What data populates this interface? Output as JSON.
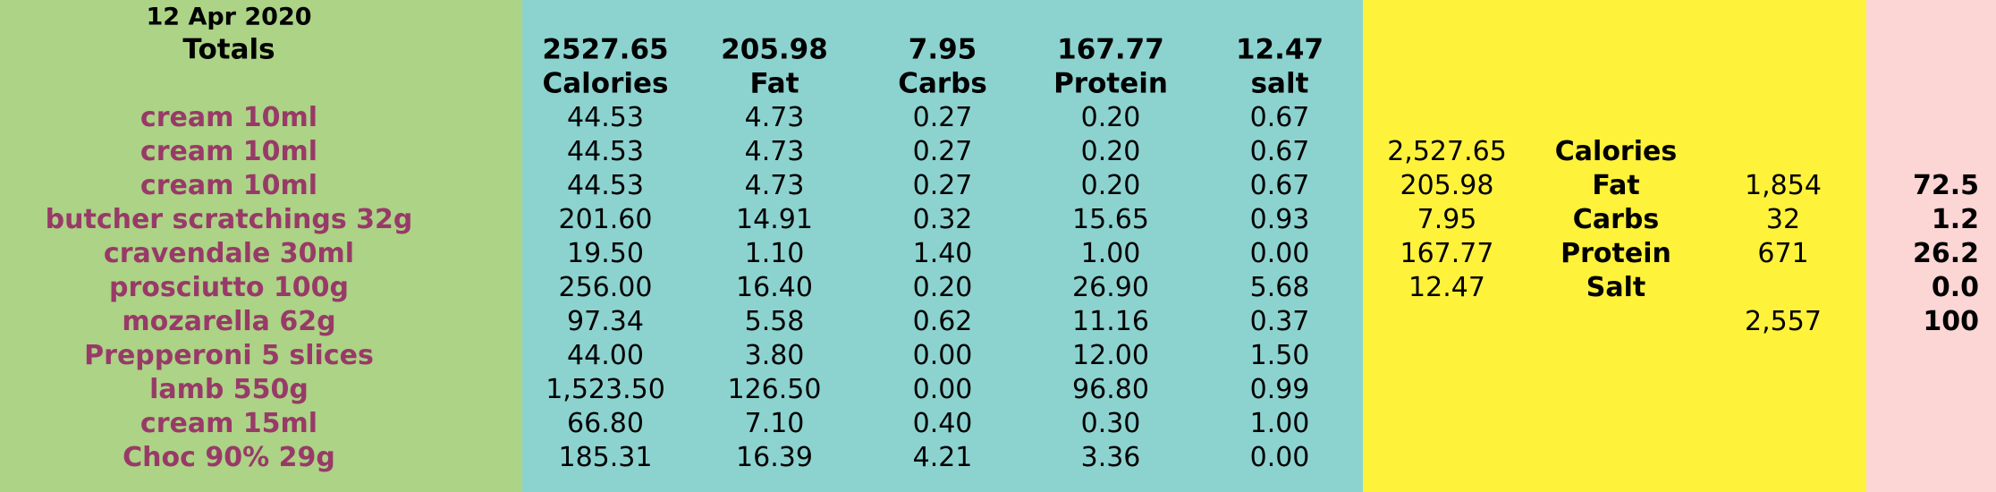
{
  "date": "12 Apr 2020",
  "totals_label": "Totals",
  "columns": [
    {
      "total": "2527.65",
      "label": "Calories"
    },
    {
      "total": "205.98",
      "label": "Fat"
    },
    {
      "total": "7.95",
      "label": "Carbs"
    },
    {
      "total": "167.77",
      "label": "Protein"
    },
    {
      "total": "12.47",
      "label": "salt"
    }
  ],
  "rows": [
    {
      "food": "cream 10ml",
      "values": [
        "44.53",
        "4.73",
        "0.27",
        "0.20",
        "0.67"
      ]
    },
    {
      "food": "cream 10ml",
      "values": [
        "44.53",
        "4.73",
        "0.27",
        "0.20",
        "0.67"
      ]
    },
    {
      "food": "cream 10ml",
      "values": [
        "44.53",
        "4.73",
        "0.27",
        "0.20",
        "0.67"
      ]
    },
    {
      "food": "butcher scratchings 32g",
      "values": [
        "201.60",
        "14.91",
        "0.32",
        "15.65",
        "0.93"
      ]
    },
    {
      "food": "cravendale 30ml",
      "values": [
        "19.50",
        "1.10",
        "1.40",
        "1.00",
        "0.00"
      ]
    },
    {
      "food": "prosciutto 100g",
      "values": [
        "256.00",
        "16.40",
        "0.20",
        "26.90",
        "5.68"
      ]
    },
    {
      "food": "mozarella 62g",
      "values": [
        "97.34",
        "5.58",
        "0.62",
        "11.16",
        "0.37"
      ]
    },
    {
      "food": "Prepperoni 5 slices",
      "values": [
        "44.00",
        "3.80",
        "0.00",
        "12.00",
        "1.50"
      ]
    },
    {
      "food": "lamb 550g",
      "values": [
        "1,523.50",
        "126.50",
        "0.00",
        "96.80",
        "0.99"
      ]
    },
    {
      "food": "cream 15ml",
      "values": [
        "66.80",
        "7.10",
        "0.40",
        "0.30",
        "1.00"
      ]
    },
    {
      "food": "Choc 90% 29g",
      "values": [
        "185.31",
        "16.39",
        "4.21",
        "3.36",
        "0.00"
      ]
    }
  ],
  "summary": [
    {
      "value": "2,527.65",
      "label": "Calories",
      "kcal": "",
      "percent": ""
    },
    {
      "value": "205.98",
      "label": "Fat",
      "kcal": "1,854",
      "percent": "72.5"
    },
    {
      "value": "7.95",
      "label": "Carbs",
      "kcal": "32",
      "percent": "1.2"
    },
    {
      "value": "167.77",
      "label": "Protein",
      "kcal": "671",
      "percent": "26.2"
    },
    {
      "value": "12.47",
      "label": "Salt",
      "kcal": "",
      "percent": "0.0"
    },
    {
      "value": "",
      "label": "",
      "kcal": "2,557",
      "percent": "100"
    }
  ],
  "colors": {
    "green_panel": "#acd386",
    "teal_panel": "#8cd3d0",
    "yellow_panel": "#fff23b",
    "pink_panel": "#fcd5d5",
    "food_text": "#983a68"
  }
}
